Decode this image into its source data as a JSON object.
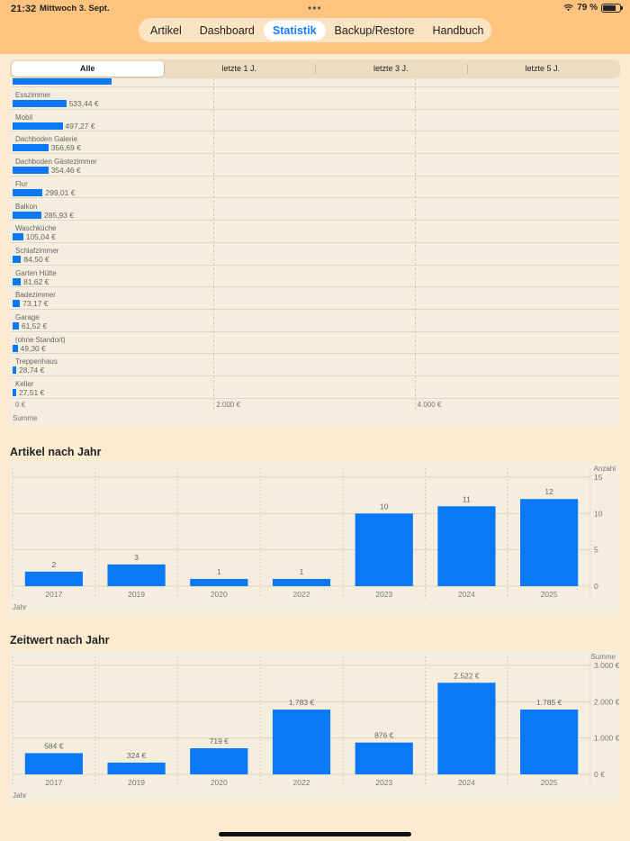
{
  "status": {
    "time": "21:32",
    "date": "Mittwoch 3. Sept.",
    "battery": "79 %",
    "battery_level": 0.79
  },
  "nav": {
    "items": [
      "Artikel",
      "Dashboard",
      "Statistik",
      "Backup/Restore",
      "Handbuch"
    ],
    "active": "Statistik"
  },
  "period": {
    "options": [
      "Alle",
      "letzte 1 J.",
      "letzte 3 J.",
      "letzte 5 J."
    ],
    "selected": "Alle"
  },
  "locations_chart": {
    "rows": [
      {
        "label": "Esszimmer",
        "value": 533.44,
        "display": "533,44 €"
      },
      {
        "label": "Mobil",
        "value": 497.27,
        "display": "497,27 €"
      },
      {
        "label": "Dachboden Galerie",
        "value": 356.69,
        "display": "356,69 €"
      },
      {
        "label": "Dachboden Gästezimmer",
        "value": 354.46,
        "display": "354,46 €"
      },
      {
        "label": "Flur",
        "value": 299.01,
        "display": "299,01 €"
      },
      {
        "label": "Balkon",
        "value": 285.93,
        "display": "285,93 €"
      },
      {
        "label": "Waschküche",
        "value": 105.04,
        "display": "105,04 €"
      },
      {
        "label": "Schlafzimmer",
        "value": 84.5,
        "display": "84,50 €"
      },
      {
        "label": "Garten Hütte",
        "value": 81.62,
        "display": "81,62 €"
      },
      {
        "label": "Badezimmer",
        "value": 73.17,
        "display": "73,17 €"
      },
      {
        "label": "Garage",
        "value": 61.52,
        "display": "61,52 €"
      },
      {
        "label": "(ohne Standort)",
        "value": 49.3,
        "display": "49,30 €"
      },
      {
        "label": "Treppenhaus",
        "value": 28.74,
        "display": "28,74 €"
      },
      {
        "label": "Keller",
        "value": 27.51,
        "display": "27,51 €"
      }
    ],
    "x_ticks": [
      "0 €",
      "2.000 €",
      "4.000 €"
    ],
    "x_label": "Summe",
    "x_max": 6000
  },
  "articles_by_year": {
    "title": "Artikel nach Jahr",
    "y_label": "Anzahl",
    "x_label": "Jahr",
    "y_ticks": [
      "15",
      "10",
      "5",
      "0"
    ],
    "ylim": [
      0,
      15
    ]
  },
  "value_by_year": {
    "title": "Zeitwert nach Jahr",
    "y_label": "Summe",
    "x_label": "Jahr",
    "y_ticks": [
      "3.000 €",
      "2.000 €",
      "1.000 €",
      "0 €"
    ],
    "ylim": [
      0,
      3000
    ]
  },
  "chart_data": [
    {
      "type": "bar",
      "orientation": "horizontal",
      "categories": [
        "Esszimmer",
        "Mobil",
        "Dachboden Galerie",
        "Dachboden Gästezimmer",
        "Flur",
        "Balkon",
        "Waschküche",
        "Schlafzimmer",
        "Garten Hütte",
        "Badezimmer",
        "Garage",
        "(ohne Standort)",
        "Treppenhaus",
        "Keller"
      ],
      "values": [
        533.44,
        497.27,
        356.69,
        354.46,
        299.01,
        285.93,
        105.04,
        84.5,
        81.62,
        73.17,
        61.52,
        49.3,
        28.74,
        27.51
      ],
      "xlabel": "Summe"
    },
    {
      "type": "bar",
      "title": "Artikel nach Jahr",
      "categories": [
        "2017",
        "2019",
        "2020",
        "2022",
        "2023",
        "2024",
        "2025"
      ],
      "values": [
        2,
        3,
        1,
        1,
        10,
        11,
        12
      ],
      "labels": [
        "2",
        "3",
        "1",
        "1",
        "10",
        "11",
        "12"
      ],
      "xlabel": "Jahr",
      "ylabel": "Anzahl",
      "ylim": [
        0,
        15
      ]
    },
    {
      "type": "bar",
      "title": "Zeitwert nach Jahr",
      "categories": [
        "2017",
        "2019",
        "2020",
        "2022",
        "2023",
        "2024",
        "2025"
      ],
      "values": [
        584,
        324,
        719,
        1783,
        876,
        2522,
        1785
      ],
      "labels": [
        "584 €",
        "324 €",
        "719 €",
        "1.783 €",
        "876 €",
        "2.522 €",
        "1.785 €"
      ],
      "xlabel": "Jahr",
      "ylabel": "Summe",
      "ylim": [
        0,
        3000
      ]
    }
  ],
  "colors": {
    "bar": "#0b78f6",
    "accent": "#1a7cf5",
    "header": "#fdc47f",
    "background": "#fbecd1"
  }
}
